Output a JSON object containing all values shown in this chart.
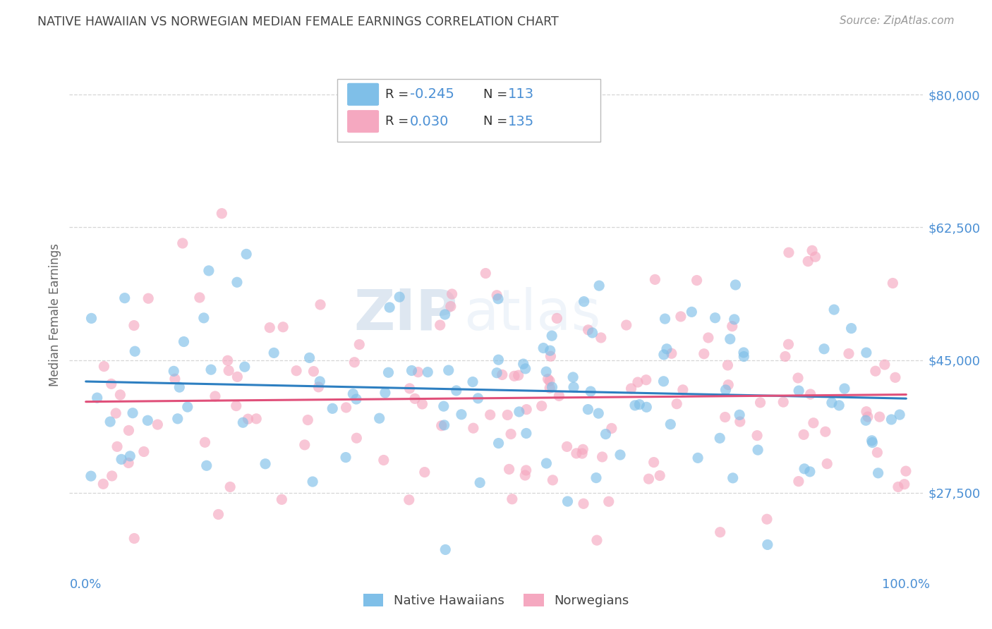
{
  "title": "NATIVE HAWAIIAN VS NORWEGIAN MEDIAN FEMALE EARNINGS CORRELATION CHART",
  "source": "Source: ZipAtlas.com",
  "ylabel": "Median Female Earnings",
  "y_ticks": [
    27500,
    45000,
    62500,
    80000
  ],
  "y_tick_labels": [
    "$27,500",
    "$45,000",
    "$62,500",
    "$80,000"
  ],
  "y_min": 17000,
  "y_max": 85000,
  "x_min": -0.02,
  "x_max": 1.02,
  "hawaii_R": -0.245,
  "hawaii_N": 113,
  "norway_R": 0.03,
  "norway_N": 135,
  "hawaii_color": "#7fbfe8",
  "norway_color": "#f5a8c0",
  "hawaii_line_color": "#2d7fc1",
  "norway_line_color": "#e0507a",
  "watermark_zip": "ZIP",
  "watermark_atlas": "atlas",
  "background_color": "#ffffff",
  "grid_color": "#cccccc",
  "title_color": "#444444",
  "axis_label_color": "#4a8fd4",
  "tick_label_color": "#888888",
  "legend_r_color": "#333333",
  "legend_val_color": "#4a8fd4",
  "seed": 1234
}
